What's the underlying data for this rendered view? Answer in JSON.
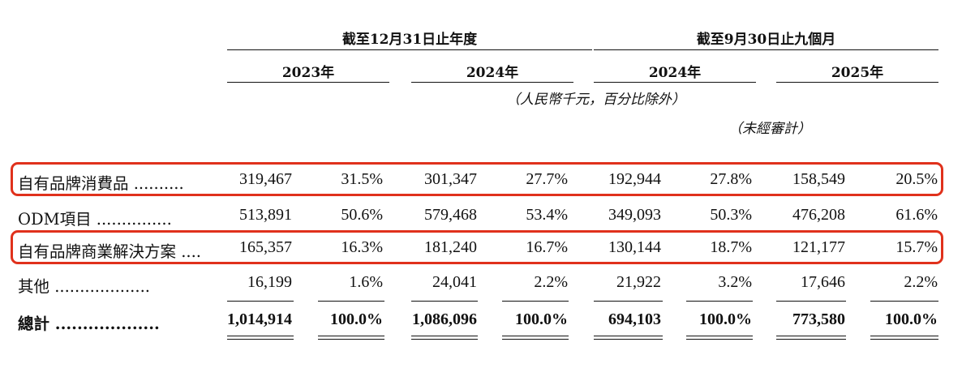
{
  "header": {
    "group1": "截至12月31日止年度",
    "group2": "截至9月30日止九個月",
    "years": [
      "2023年",
      "2024年",
      "2024年",
      "2025年"
    ],
    "units_note": "（人民幣千元，百分比除外）",
    "unaudited_note": "（未經審計）"
  },
  "rows": [
    {
      "label": "自有品牌消費品 ..........",
      "values": [
        "319,467",
        "31.5%",
        "301,347",
        "27.7%",
        "192,944",
        "27.8%",
        "158,549",
        "20.5%"
      ]
    },
    {
      "label": "ODM項目 ...............",
      "values": [
        "513,891",
        "50.6%",
        "579,468",
        "53.4%",
        "349,093",
        "50.3%",
        "476,208",
        "61.6%"
      ]
    },
    {
      "label": "自有品牌商業解決方案 ....",
      "values": [
        "165,357",
        "16.3%",
        "181,240",
        "16.7%",
        "130,144",
        "18.7%",
        "121,177",
        "15.7%"
      ]
    },
    {
      "label": "其他 ...................",
      "values": [
        "16,199",
        "1.6%",
        "24,041",
        "2.2%",
        "21,922",
        "3.2%",
        "17,646",
        "2.2%"
      ]
    },
    {
      "label": "總計 ...................",
      "values": [
        "1,014,914",
        "100.0%",
        "1,086,096",
        "100.0%",
        "694,103",
        "100.0%",
        "773,580",
        "100.0%"
      ]
    }
  ],
  "highlight_color": "#e0311c"
}
